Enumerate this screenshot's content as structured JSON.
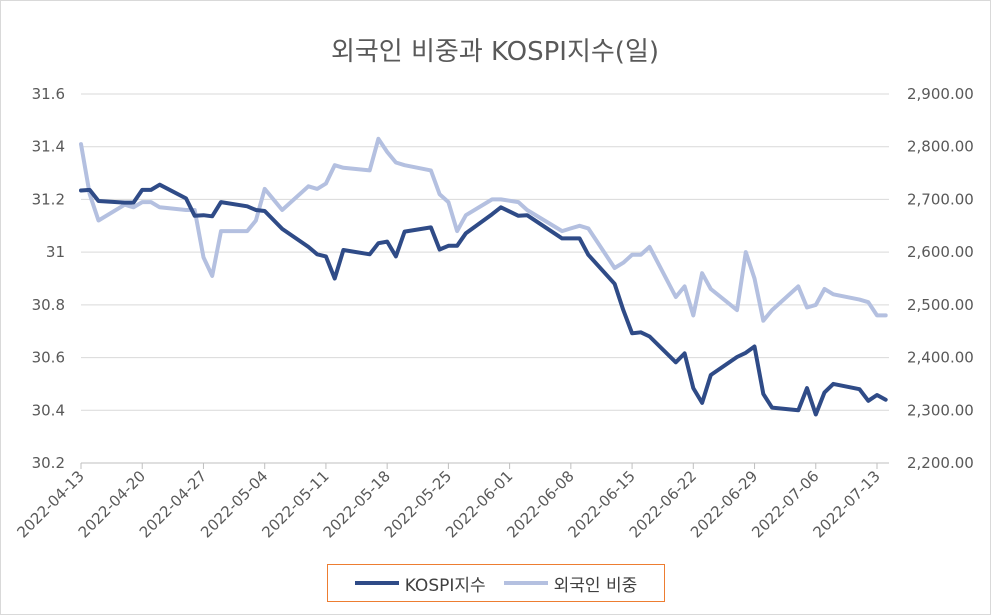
{
  "chart_data": {
    "type": "line",
    "title": "외국인 비중과 KOSPI지수(일)",
    "dates": [
      "2022-04-13",
      "2022-04-14",
      "2022-04-15",
      "2022-04-18",
      "2022-04-19",
      "2022-04-20",
      "2022-04-21",
      "2022-04-22",
      "2022-04-25",
      "2022-04-26",
      "2022-04-27",
      "2022-04-28",
      "2022-04-29",
      "2022-05-02",
      "2022-05-03",
      "2022-05-04",
      "2022-05-06",
      "2022-05-09",
      "2022-05-10",
      "2022-05-11",
      "2022-05-12",
      "2022-05-13",
      "2022-05-16",
      "2022-05-17",
      "2022-05-18",
      "2022-05-19",
      "2022-05-20",
      "2022-05-23",
      "2022-05-24",
      "2022-05-25",
      "2022-05-26",
      "2022-05-27",
      "2022-05-30",
      "2022-05-31",
      "2022-06-02",
      "2022-06-03",
      "2022-06-07",
      "2022-06-08",
      "2022-06-09",
      "2022-06-10",
      "2022-06-13",
      "2022-06-14",
      "2022-06-15",
      "2022-06-16",
      "2022-06-17",
      "2022-06-20",
      "2022-06-21",
      "2022-06-22",
      "2022-06-23",
      "2022-06-24",
      "2022-06-27",
      "2022-06-28",
      "2022-06-29",
      "2022-06-30",
      "2022-07-01",
      "2022-07-04",
      "2022-07-05",
      "2022-07-06",
      "2022-07-07",
      "2022-07-08",
      "2022-07-11",
      "2022-07-12",
      "2022-07-13",
      "2022-07-14"
    ],
    "x_ticks": [
      "2022-04-13",
      "2022-04-20",
      "2022-04-27",
      "2022-05-04",
      "2022-05-11",
      "2022-05-18",
      "2022-05-25",
      "2022-06-01",
      "2022-06-08",
      "2022-06-15",
      "2022-06-22",
      "2022-06-29",
      "2022-07-06",
      "2022-07-13"
    ],
    "y_left_ticks": [
      "31.6",
      "31.4",
      "31.2",
      "31",
      "30.8",
      "30.6",
      "30.4",
      "30.2"
    ],
    "y_right_ticks": [
      "2,900.00",
      "2,800.00",
      "2,700.00",
      "2,600.00",
      "2,500.00",
      "2,400.00",
      "2,300.00",
      "2,200.00"
    ],
    "ylim_left": [
      30.2,
      31.6
    ],
    "ylim_right": [
      2200,
      2900
    ],
    "series": [
      {
        "name": "KOSPI지수",
        "axis": "right",
        "color": "#2f4b87",
        "values": [
          2717,
          2718,
          2697,
          2694,
          2694,
          2718,
          2718,
          2728,
          2702,
          2669,
          2670,
          2668,
          2695,
          2687,
          2680,
          2678,
          2644,
          2610,
          2596,
          2592,
          2550,
          2604,
          2596,
          2617,
          2620,
          2592,
          2639,
          2647,
          2605,
          2612,
          2612,
          2636,
          2672,
          2685,
          2669,
          2670,
          2626,
          2626,
          2626,
          2595,
          2540,
          2490,
          2446,
          2448,
          2440,
          2391,
          2408,
          2342,
          2314,
          2367,
          2401,
          2409,
          2421,
          2331,
          2305,
          2300,
          2342,
          2292,
          2334,
          2350,
          2340,
          2318,
          2329,
          2320
        ]
      },
      {
        "name": "외국인 비중",
        "axis": "left",
        "color": "#b4c0e0",
        "values": [
          31.41,
          31.22,
          31.12,
          31.18,
          31.17,
          31.19,
          31.19,
          31.17,
          31.16,
          31.16,
          30.98,
          30.91,
          31.08,
          31.08,
          31.12,
          31.24,
          31.16,
          31.25,
          31.24,
          31.26,
          31.33,
          31.32,
          31.31,
          31.43,
          31.38,
          31.34,
          31.33,
          31.31,
          31.22,
          31.19,
          31.08,
          31.14,
          31.2,
          31.2,
          31.19,
          31.16,
          31.08,
          31.09,
          31.1,
          31.09,
          30.94,
          30.96,
          30.99,
          30.99,
          31.02,
          30.83,
          30.87,
          30.76,
          30.92,
          30.86,
          30.78,
          31.0,
          30.9,
          30.74,
          30.78,
          30.87,
          30.79,
          30.8,
          30.86,
          30.84,
          30.82,
          30.81,
          30.76,
          30.76
        ]
      }
    ]
  }
}
